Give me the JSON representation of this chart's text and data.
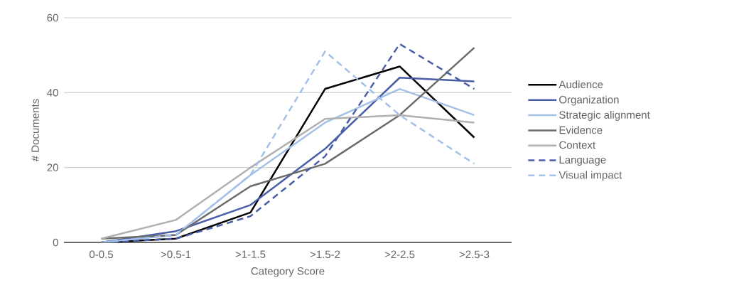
{
  "chart_data": {
    "type": "line",
    "xlabel": "Category Score",
    "ylabel": "# Documents",
    "categories": [
      "0-0.5",
      ">0.5-1",
      ">1-1.5",
      ">1.5-2",
      ">2-2.5",
      ">2.5-3"
    ],
    "ylim": [
      0,
      60
    ],
    "yticks": [
      0,
      20,
      40,
      60
    ],
    "grid": "y",
    "legend": "right",
    "marker": "none",
    "series": [
      {
        "name": "Audience",
        "color": "#000000",
        "values": [
          0,
          1,
          8,
          41,
          47,
          28
        ]
      },
      {
        "name": "Organization",
        "color": "#4a5ea8",
        "values": [
          0,
          3,
          10,
          25,
          44,
          43
        ]
      },
      {
        "name": "Strategic alignment",
        "color": "#a3c1e8",
        "values": [
          0,
          2,
          18,
          32,
          41,
          34
        ]
      },
      {
        "name": "Evidence",
        "color": "#6b6b6b",
        "values": [
          1,
          2,
          15,
          21,
          34,
          52
        ]
      },
      {
        "name": "Context",
        "color": "#b0b0b0",
        "values": [
          1,
          6,
          20,
          33,
          34,
          32
        ]
      },
      {
        "name": "Language",
        "color": "#4a5ea8",
        "line_style": "dashed",
        "values": [
          0,
          1,
          7,
          23,
          53,
          41
        ]
      },
      {
        "name": "Visual impact",
        "color": "#a3c1e8",
        "line_style": "dashed",
        "values": [
          0,
          2,
          18,
          51,
          34,
          21
        ]
      }
    ]
  }
}
